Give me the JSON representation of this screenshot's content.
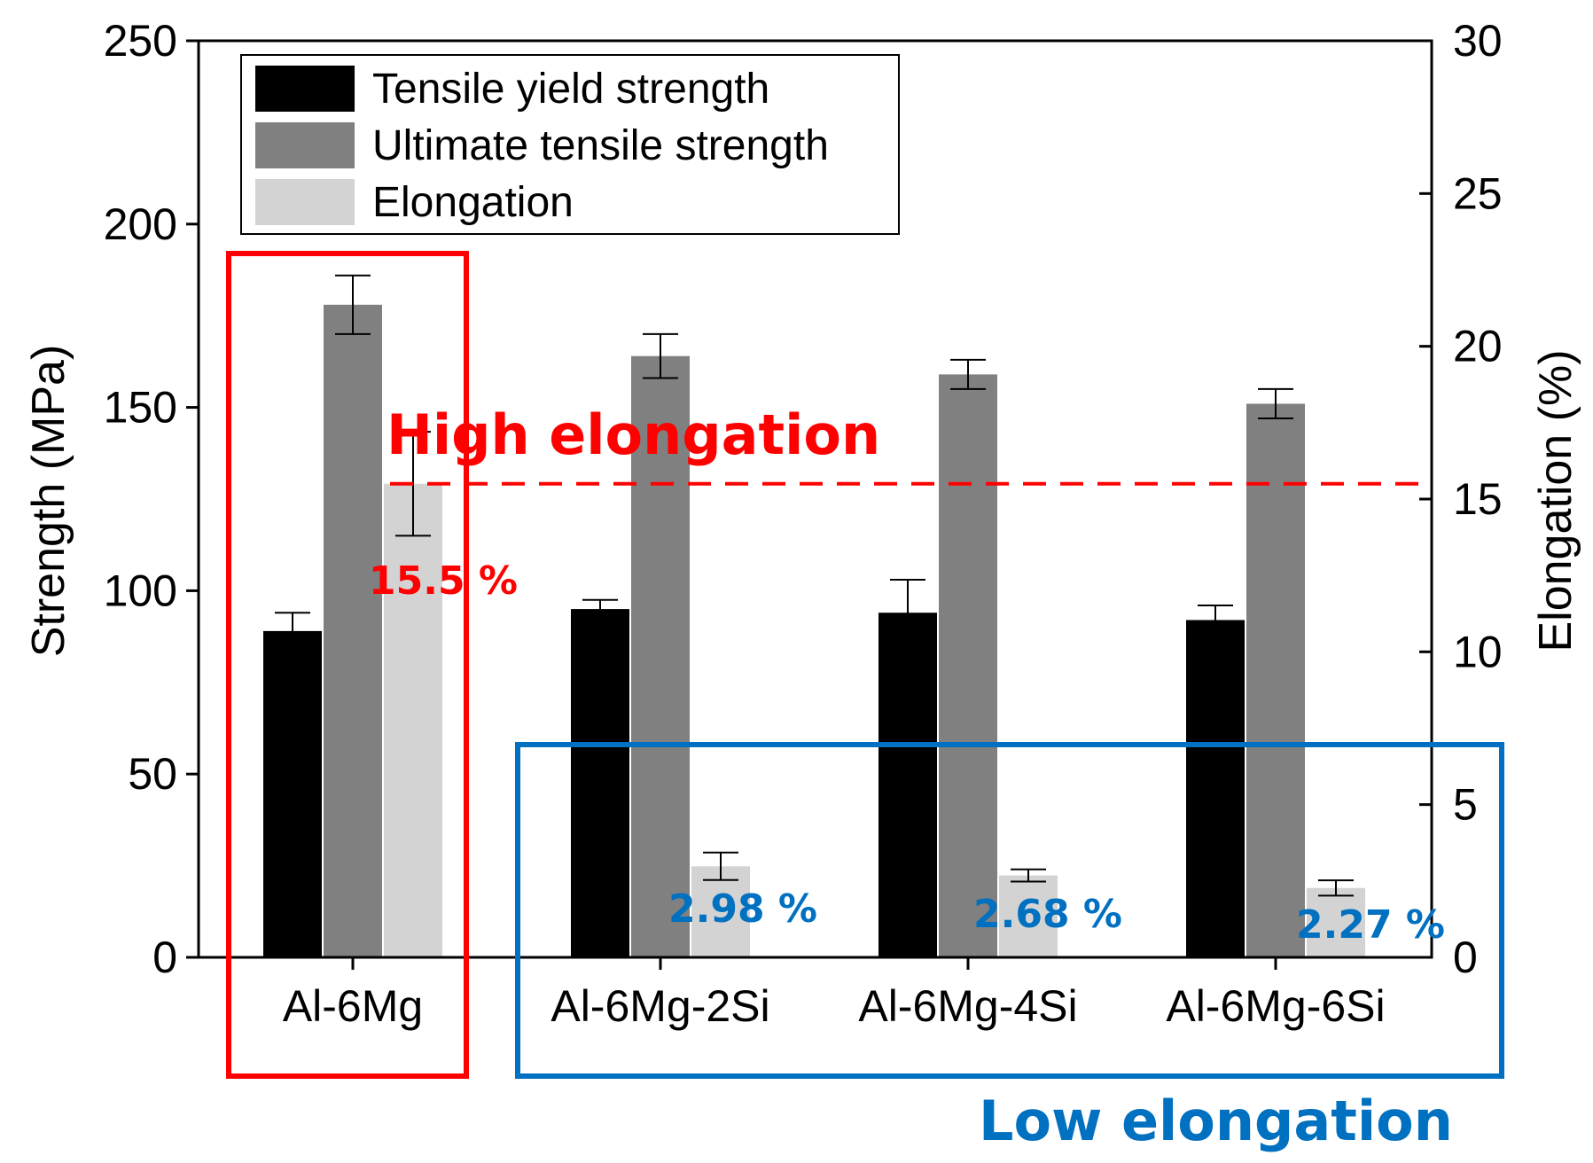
{
  "chart_data": {
    "type": "bar",
    "categories": [
      "Al-6Mg",
      "Al-6Mg-2Si",
      "Al-6Mg-4Si",
      "Al-6Mg-6Si"
    ],
    "series": [
      {
        "name": "Tensile yield strength",
        "axis": "left",
        "color": "#000000",
        "values": [
          89,
          95,
          94,
          92
        ],
        "errors": [
          5,
          2.5,
          9,
          4
        ]
      },
      {
        "name": "Ultimate tensile strength",
        "axis": "left",
        "color": "#808080",
        "values": [
          178,
          164,
          159,
          151
        ],
        "errors": [
          8,
          6,
          4,
          4
        ]
      },
      {
        "name": "Elongation",
        "axis": "right",
        "color": "#d3d3d3",
        "values": [
          15.5,
          2.98,
          2.68,
          2.27
        ],
        "errors": [
          1.7,
          0.45,
          0.2,
          0.25
        ]
      }
    ],
    "ylabel": "Strength (MPa)",
    "ylabel_right": "Elongation (%)",
    "ylim": [
      0,
      250
    ],
    "ylim_right": [
      0,
      30
    ],
    "yticks": [
      "0",
      "50",
      "100",
      "150",
      "200",
      "250"
    ],
    "yticks_right": [
      "0",
      "5",
      "10",
      "15",
      "20",
      "25",
      "30"
    ],
    "reference_line": {
      "axis": "right",
      "value": 15.5,
      "style": "dashed",
      "color": "#ff0000"
    },
    "value_labels": [
      "15.5 %",
      "2.98 %",
      "2.68 %",
      "2.27 %"
    ],
    "annotations": {
      "high": {
        "text": "High elongation",
        "color": "#ff0000"
      },
      "low": {
        "text": "Low elongation",
        "color": "#0070c0"
      }
    },
    "legend_placement": "top-left"
  }
}
